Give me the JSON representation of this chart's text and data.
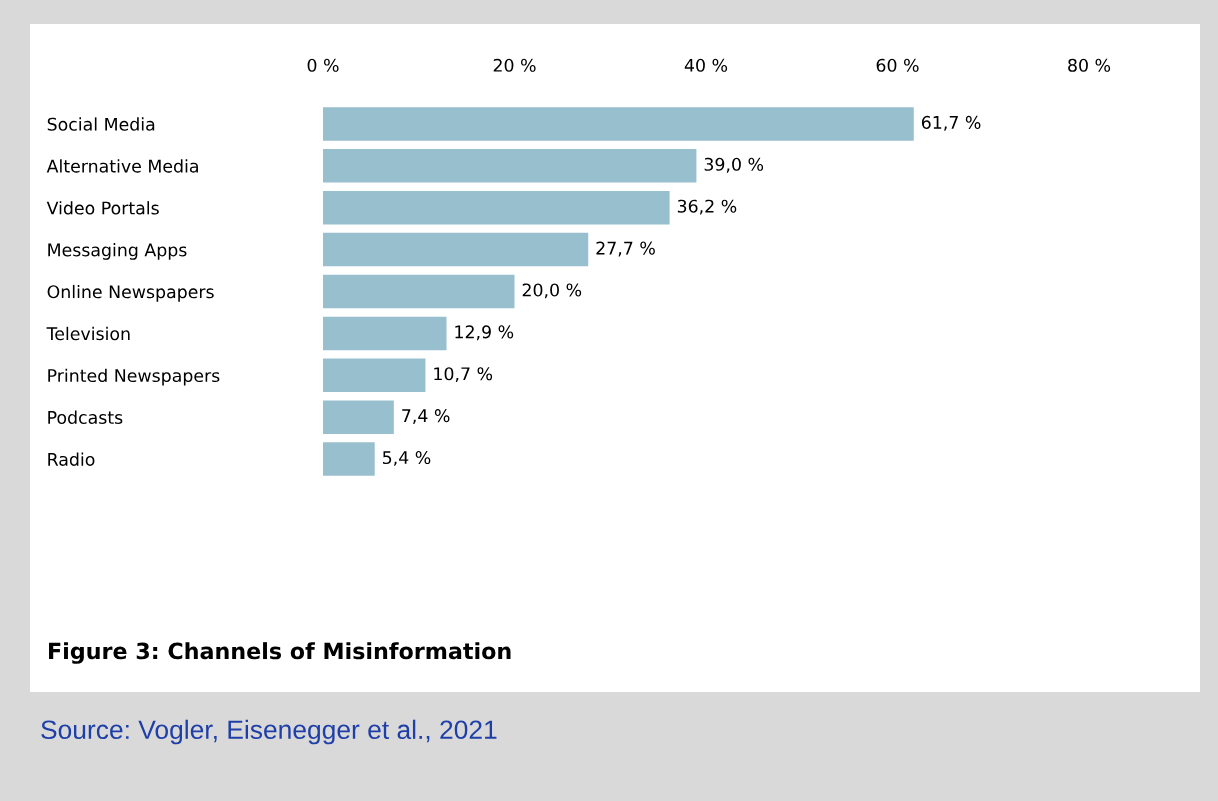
{
  "chart_data": {
    "type": "bar",
    "orientation": "horizontal",
    "title": "Figure 3: Channels of Misinformation",
    "categories": [
      "Social Media",
      "Alternative Media",
      "Video Portals",
      "Messaging Apps",
      "Online Newspapers",
      "Television",
      "Printed Newspapers",
      "Podcasts",
      "Radio"
    ],
    "values": [
      61.7,
      39.0,
      36.2,
      27.7,
      20.0,
      12.9,
      10.7,
      7.4,
      5.4
    ],
    "value_labels": [
      "61,7 %",
      "39,0 %",
      "36,2 %",
      "27,7 %",
      "20,0 %",
      "12,9 %",
      "10,7 %",
      "7,4 %",
      "5,4 %"
    ],
    "color": "#98bfcd",
    "xlim": [
      0,
      80
    ],
    "xticks": [
      {
        "value": 0,
        "label": "0 %"
      },
      {
        "value": 20,
        "label": "20 %"
      },
      {
        "value": 40,
        "label": "40 %"
      },
      {
        "value": 60,
        "label": "60 %"
      },
      {
        "value": 80,
        "label": "80 %"
      }
    ],
    "grid": false,
    "legend": false,
    "annotations": [
      "Source: Vogler, Eisenegger et al., 2021"
    ]
  }
}
